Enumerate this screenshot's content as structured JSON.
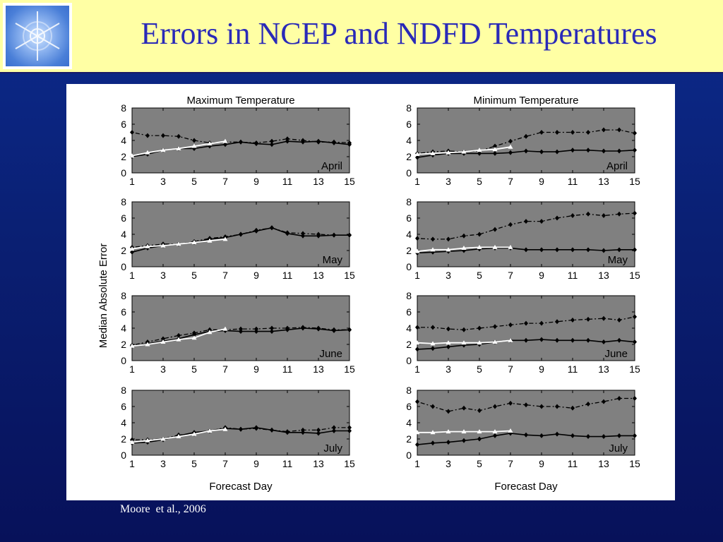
{
  "slide": {
    "title": "Errors in NCEP and NDFD Temperatures",
    "citation": "Moore  et al., 2006",
    "logo_icon": "snowflake-icon"
  },
  "colors": {
    "header_bg": "#ffffa4",
    "title": "#2a2ab8",
    "slide_bg": "#0a1f72",
    "panel_bg": "#808080",
    "dotted_series": "#000000",
    "solid_series": "#000000",
    "white_series": "#ffffff"
  },
  "chart_data": {
    "type": "line",
    "ylabel": "Median Absolute Error",
    "xlabel": "Forecast Day",
    "column_titles": [
      "Maximum Temperature",
      "Minimum Temperature"
    ],
    "ylim": [
      0,
      8
    ],
    "xlim": [
      1,
      15
    ],
    "xticks": [
      "1",
      "3",
      "5",
      "7",
      "9",
      "11",
      "13",
      "15"
    ],
    "yticks": [
      "0",
      "2",
      "4",
      "6",
      "8"
    ],
    "grid": false,
    "panels": [
      {
        "column": 0,
        "row": 0,
        "month": "April",
        "series": [
          {
            "style": "dotted",
            "x": [
              1,
              2,
              3,
              4,
              5,
              6,
              7,
              8,
              9,
              10,
              11,
              12,
              13,
              14,
              15
            ],
            "values": [
              5.0,
              4.6,
              4.6,
              4.5,
              4.0,
              3.7,
              3.8,
              3.8,
              3.7,
              3.9,
              4.2,
              4.0,
              3.8,
              3.8,
              3.7
            ]
          },
          {
            "style": "solid",
            "x": [
              1,
              2,
              3,
              4,
              5,
              6,
              7,
              8,
              9,
              10,
              11,
              12,
              13,
              14,
              15
            ],
            "values": [
              2.0,
              2.3,
              2.8,
              3.0,
              3.0,
              3.3,
              3.5,
              3.8,
              3.6,
              3.5,
              3.9,
              3.8,
              3.9,
              3.7,
              3.5
            ]
          },
          {
            "style": "white",
            "x": [
              1,
              2,
              3,
              4,
              5,
              6,
              7
            ],
            "values": [
              2.1,
              2.5,
              2.8,
              3.0,
              3.3,
              3.6,
              3.9
            ]
          }
        ]
      },
      {
        "column": 1,
        "row": 0,
        "month": "April",
        "series": [
          {
            "style": "dotted",
            "x": [
              1,
              2,
              3,
              4,
              5,
              6,
              7,
              8,
              9,
              10,
              11,
              12,
              13,
              14,
              15
            ],
            "values": [
              2.4,
              2.6,
              2.7,
              2.6,
              2.7,
              3.3,
              3.9,
              4.5,
              5.0,
              5.0,
              5.0,
              5.0,
              5.3,
              5.3,
              4.9
            ]
          },
          {
            "style": "solid",
            "x": [
              1,
              2,
              3,
              4,
              5,
              6,
              7,
              8,
              9,
              10,
              11,
              12,
              13,
              14,
              15
            ],
            "values": [
              1.9,
              2.2,
              2.4,
              2.4,
              2.4,
              2.4,
              2.5,
              2.7,
              2.6,
              2.6,
              2.8,
              2.8,
              2.7,
              2.7,
              2.8
            ]
          },
          {
            "style": "white",
            "x": [
              1,
              2,
              3,
              4,
              5,
              6,
              7
            ],
            "values": [
              2.3,
              2.4,
              2.5,
              2.6,
              2.8,
              2.9,
              3.2
            ]
          }
        ]
      },
      {
        "column": 0,
        "row": 1,
        "month": "May",
        "series": [
          {
            "style": "dotted",
            "x": [
              1,
              2,
              3,
              4,
              5,
              6,
              7,
              8,
              9,
              10,
              11,
              12,
              13,
              14,
              15
            ],
            "values": [
              2.4,
              2.6,
              2.8,
              2.8,
              3.1,
              3.5,
              3.7,
              4.0,
              4.5,
              4.8,
              4.2,
              4.1,
              4.0,
              3.9,
              3.9
            ]
          },
          {
            "style": "solid",
            "x": [
              1,
              2,
              3,
              4,
              5,
              6,
              7,
              8,
              9,
              10,
              11,
              12,
              13,
              14,
              15
            ],
            "values": [
              1.8,
              2.3,
              2.6,
              2.8,
              3.0,
              3.4,
              3.6,
              4.0,
              4.4,
              4.8,
              4.1,
              3.8,
              3.8,
              3.9,
              3.9
            ]
          },
          {
            "style": "white",
            "x": [
              1,
              2,
              3,
              4,
              5,
              6,
              7
            ],
            "values": [
              2.2,
              2.5,
              2.6,
              2.8,
              3.0,
              3.2,
              3.4
            ]
          }
        ]
      },
      {
        "column": 1,
        "row": 1,
        "month": "May",
        "series": [
          {
            "style": "dotted",
            "x": [
              1,
              2,
              3,
              4,
              5,
              6,
              7,
              8,
              9,
              10,
              11,
              12,
              13,
              14,
              15
            ],
            "values": [
              3.5,
              3.4,
              3.4,
              3.8,
              4.0,
              4.6,
              5.2,
              5.6,
              5.6,
              6.0,
              6.3,
              6.5,
              6.3,
              6.5,
              6.6
            ]
          },
          {
            "style": "solid",
            "x": [
              1,
              2,
              3,
              4,
              5,
              6,
              7,
              8,
              9,
              10,
              11,
              12,
              13,
              14,
              15
            ],
            "values": [
              1.7,
              1.8,
              1.9,
              2.0,
              2.2,
              2.3,
              2.3,
              2.1,
              2.1,
              2.1,
              2.1,
              2.1,
              2.0,
              2.1,
              2.1
            ]
          },
          {
            "style": "white",
            "x": [
              1,
              2,
              3,
              4,
              5,
              6,
              7
            ],
            "values": [
              1.9,
              2.1,
              2.1,
              2.3,
              2.4,
              2.4,
              2.4
            ]
          }
        ]
      },
      {
        "column": 0,
        "row": 2,
        "month": "June",
        "series": [
          {
            "style": "dotted",
            "x": [
              1,
              2,
              3,
              4,
              5,
              6,
              7,
              8,
              9,
              10,
              11,
              12,
              13,
              14,
              15
            ],
            "values": [
              1.9,
              2.3,
              2.7,
              3.1,
              3.4,
              3.8,
              3.8,
              3.9,
              3.9,
              4.0,
              4.0,
              4.1,
              4.0,
              3.8,
              3.8
            ]
          },
          {
            "style": "solid",
            "x": [
              1,
              2,
              3,
              4,
              5,
              6,
              7,
              8,
              9,
              10,
              11,
              12,
              13,
              14,
              15
            ],
            "values": [
              1.8,
              2.1,
              2.4,
              2.7,
              3.2,
              3.6,
              3.7,
              3.6,
              3.6,
              3.6,
              3.8,
              4.0,
              3.9,
              3.7,
              3.8
            ]
          },
          {
            "style": "white",
            "x": [
              1,
              2,
              3,
              4,
              5,
              6,
              7
            ],
            "values": [
              1.8,
              2.0,
              2.3,
              2.6,
              2.8,
              3.5,
              3.9
            ]
          }
        ]
      },
      {
        "column": 1,
        "row": 2,
        "month": "June",
        "series": [
          {
            "style": "dotted",
            "x": [
              1,
              2,
              3,
              4,
              5,
              6,
              7,
              8,
              9,
              10,
              11,
              12,
              13,
              14,
              15
            ],
            "values": [
              4.1,
              4.1,
              3.9,
              3.8,
              4.0,
              4.2,
              4.4,
              4.6,
              4.6,
              4.8,
              5.0,
              5.1,
              5.2,
              5.0,
              5.4
            ]
          },
          {
            "style": "solid",
            "x": [
              1,
              2,
              3,
              4,
              5,
              6,
              7,
              8,
              9,
              10,
              11,
              12,
              13,
              14,
              15
            ],
            "values": [
              1.4,
              1.5,
              1.7,
              1.9,
              2.0,
              2.3,
              2.5,
              2.5,
              2.6,
              2.5,
              2.5,
              2.5,
              2.3,
              2.5,
              2.3
            ]
          },
          {
            "style": "white",
            "x": [
              1,
              2,
              3,
              4,
              5,
              6,
              7
            ],
            "values": [
              2.2,
              2.1,
              2.2,
              2.2,
              2.2,
              2.3,
              2.5
            ]
          }
        ]
      },
      {
        "column": 0,
        "row": 3,
        "month": "July",
        "series": [
          {
            "style": "dotted",
            "x": [
              1,
              2,
              3,
              4,
              5,
              6,
              7,
              8,
              9,
              10,
              11,
              12,
              13,
              14,
              15
            ],
            "values": [
              1.9,
              1.9,
              2.0,
              2.5,
              2.6,
              3.0,
              3.4,
              3.2,
              3.3,
              3.1,
              2.9,
              3.1,
              3.1,
              3.4,
              3.4
            ]
          },
          {
            "style": "solid",
            "x": [
              1,
              2,
              3,
              4,
              5,
              6,
              7,
              8,
              9,
              10,
              11,
              12,
              13,
              14,
              15
            ],
            "values": [
              1.5,
              1.6,
              1.9,
              2.4,
              2.8,
              3.0,
              3.3,
              3.2,
              3.4,
              3.1,
              2.8,
              2.8,
              2.7,
              3.0,
              3.0
            ]
          },
          {
            "style": "white",
            "x": [
              1,
              2,
              3,
              4,
              5,
              6,
              7
            ],
            "values": [
              1.6,
              1.8,
              2.0,
              2.3,
              2.6,
              3.0,
              3.2
            ]
          }
        ]
      },
      {
        "column": 1,
        "row": 3,
        "month": "July",
        "series": [
          {
            "style": "dotted",
            "x": [
              1,
              2,
              3,
              4,
              5,
              6,
              7,
              8,
              9,
              10,
              11,
              12,
              13,
              14,
              15
            ],
            "values": [
              6.6,
              6.0,
              5.4,
              5.8,
              5.5,
              6.0,
              6.4,
              6.2,
              6.0,
              6.0,
              5.8,
              6.3,
              6.6,
              7.0,
              7.0
            ]
          },
          {
            "style": "solid",
            "x": [
              1,
              2,
              3,
              4,
              5,
              6,
              7,
              8,
              9,
              10,
              11,
              12,
              13,
              14,
              15
            ],
            "values": [
              1.3,
              1.5,
              1.6,
              1.8,
              2.0,
              2.4,
              2.7,
              2.5,
              2.4,
              2.6,
              2.4,
              2.3,
              2.3,
              2.4,
              2.4
            ]
          },
          {
            "style": "white",
            "x": [
              1,
              2,
              3,
              4,
              5,
              6,
              7
            ],
            "values": [
              2.8,
              2.8,
              2.9,
              2.9,
              2.9,
              2.9,
              3.0
            ]
          }
        ]
      }
    ]
  }
}
